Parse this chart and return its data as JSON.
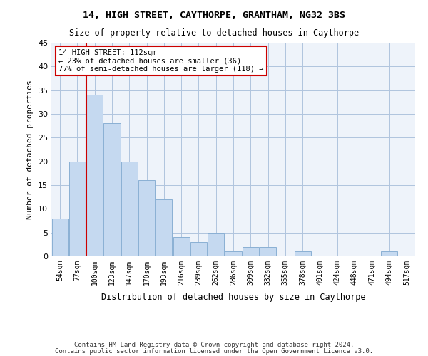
{
  "title": "14, HIGH STREET, CAYTHORPE, GRANTHAM, NG32 3BS",
  "subtitle": "Size of property relative to detached houses in Caythorpe",
  "xlabel": "Distribution of detached houses by size in Caythorpe",
  "ylabel": "Number of detached properties",
  "footer_line1": "Contains HM Land Registry data © Crown copyright and database right 2024.",
  "footer_line2": "Contains public sector information licensed under the Open Government Licence v3.0.",
  "bar_color": "#c5d9f0",
  "bar_edge_color": "#8ab0d4",
  "grid_color": "#b0c4de",
  "background_color": "#eef3fa",
  "annotation_box_color": "#cc0000",
  "vline_color": "#cc0000",
  "property_size": 112,
  "annotation_text_line1": "14 HIGH STREET: 112sqm",
  "annotation_text_line2": "← 23% of detached houses are smaller (36)",
  "annotation_text_line3": "77% of semi-detached houses are larger (118) →",
  "categories": [
    "54sqm",
    "77sqm",
    "100sqm",
    "123sqm",
    "147sqm",
    "170sqm",
    "193sqm",
    "216sqm",
    "239sqm",
    "262sqm",
    "286sqm",
    "309sqm",
    "332sqm",
    "355sqm",
    "378sqm",
    "401sqm",
    "424sqm",
    "448sqm",
    "471sqm",
    "494sqm",
    "517sqm"
  ],
  "bin_starts": [
    54,
    77,
    100,
    123,
    147,
    170,
    193,
    216,
    239,
    262,
    286,
    309,
    332,
    355,
    378,
    401,
    424,
    448,
    471,
    494,
    517
  ],
  "bin_width": 23,
  "values": [
    8,
    20,
    34,
    28,
    20,
    16,
    12,
    4,
    3,
    5,
    1,
    2,
    2,
    0,
    1,
    0,
    0,
    0,
    0,
    1,
    0
  ],
  "ylim": [
    0,
    45
  ],
  "yticks": [
    0,
    5,
    10,
    15,
    20,
    25,
    30,
    35,
    40,
    45
  ]
}
